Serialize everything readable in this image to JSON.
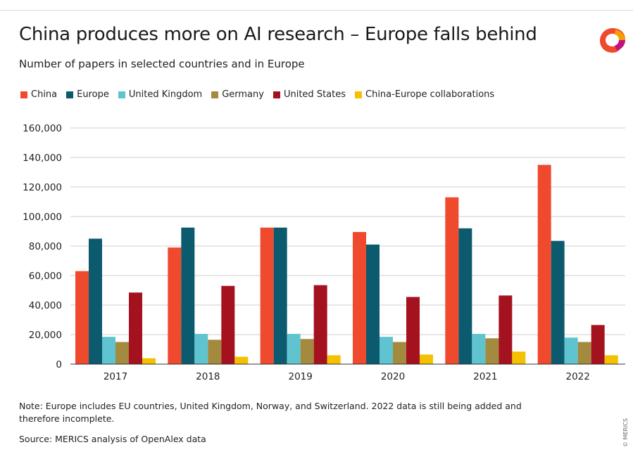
{
  "title": "China produces more on AI research – Europe falls behind",
  "subtitle": "Number of papers in selected countries and in Europe",
  "note": "Note: Europe includes EU countries, United Kingdom, Norway, and Switzerland. 2022 data is still being added and therefore incomplete.",
  "source": "Source: MERICS analysis of OpenAlex data",
  "copyright": "© MERICS",
  "logo_icon": "merics-logo-icon",
  "chart_data": {
    "type": "bar",
    "title": "China produces more on AI research – Europe falls behind",
    "subtitle": "Number of papers in selected countries and in Europe",
    "xlabel": "",
    "ylabel": "",
    "categories": [
      "2017",
      "2018",
      "2019",
      "2020",
      "2021",
      "2022"
    ],
    "ylim": [
      0,
      160000
    ],
    "yticks": [
      0,
      20000,
      40000,
      60000,
      80000,
      100000,
      120000,
      140000,
      160000
    ],
    "ytick_labels": [
      "0",
      "20,000",
      "40,000",
      "60,000",
      "80,000",
      "100,000",
      "120,000",
      "140,000",
      "160,000"
    ],
    "grid": true,
    "legend_position": "top",
    "series": [
      {
        "name": "China",
        "color": "#f04a2e",
        "values": [
          63000,
          79000,
          92500,
          89500,
          113000,
          135000
        ]
      },
      {
        "name": "Europe",
        "color": "#0c5a6e",
        "values": [
          85000,
          92500,
          92500,
          81000,
          92000,
          83500
        ]
      },
      {
        "name": "United Kingdom",
        "color": "#5fc4cf",
        "values": [
          18500,
          20500,
          20500,
          18500,
          20500,
          18000
        ]
      },
      {
        "name": "Germany",
        "color": "#a38a3f",
        "values": [
          15000,
          16500,
          17000,
          15000,
          17500,
          15000
        ]
      },
      {
        "name": "United States",
        "color": "#a5121f",
        "values": [
          48500,
          53000,
          53500,
          45500,
          46500,
          26500
        ]
      },
      {
        "name": "China-Europe collaborations",
        "color": "#f5c000",
        "values": [
          4000,
          5000,
          6000,
          6500,
          8500,
          6000
        ]
      }
    ]
  }
}
